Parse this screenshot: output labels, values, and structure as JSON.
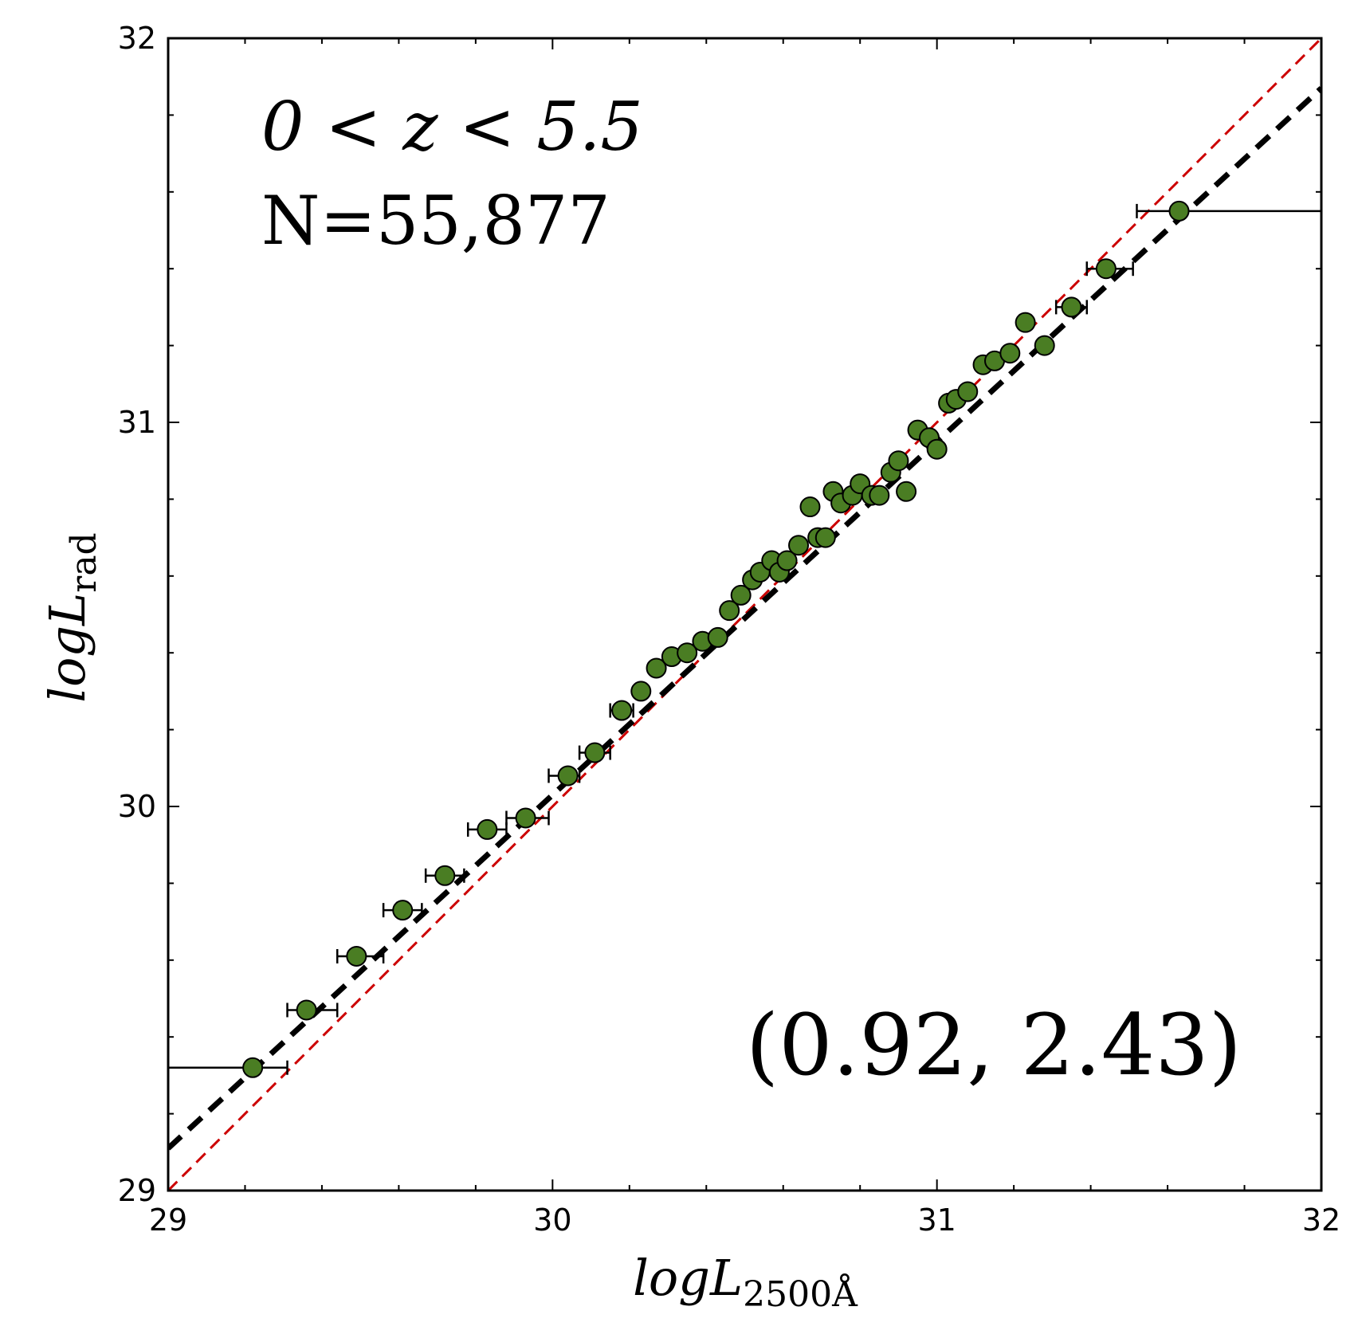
{
  "chart_data": {
    "type": "scatter",
    "xlim": [
      29,
      32
    ],
    "ylim": [
      29,
      32
    ],
    "x_ticks": [
      "29",
      "30",
      "31",
      "32"
    ],
    "y_ticks": [
      "29",
      "30",
      "31",
      "32"
    ],
    "xlabel": {
      "main": "logL",
      "sub": "2500Å"
    },
    "ylabel": {
      "main": "logL",
      "sub": "rad"
    },
    "annotations": {
      "redshift_range": "0 < z < 5.5",
      "count": "N=55,877",
      "fit_params": "(0.92, 2.43)"
    },
    "grid": false,
    "colors": {
      "points": "#4a7d23",
      "fit_line": "#000000",
      "reference_line": "#cc0000"
    },
    "fit_line": {
      "style": "black thick dashed",
      "slope": 0.92,
      "intercept": 2.43
    },
    "reference_line": {
      "style": "red thin dashed",
      "slope": 1.0,
      "intercept": 0
    },
    "points": [
      {
        "x": 29.22,
        "y": 29.32,
        "xerr": [
          29.0,
          29.31
        ]
      },
      {
        "x": 29.36,
        "y": 29.47,
        "xerr": [
          29.31,
          29.44
        ]
      },
      {
        "x": 29.49,
        "y": 29.61,
        "xerr": [
          29.44,
          29.56
        ]
      },
      {
        "x": 29.61,
        "y": 29.73,
        "xerr": [
          29.56,
          29.66
        ]
      },
      {
        "x": 29.72,
        "y": 29.82,
        "xerr": [
          29.67,
          29.77
        ]
      },
      {
        "x": 29.83,
        "y": 29.94,
        "xerr": [
          29.78,
          29.88
        ]
      },
      {
        "x": 29.93,
        "y": 29.97,
        "xerr": [
          29.88,
          29.99
        ]
      },
      {
        "x": 30.04,
        "y": 30.08,
        "xerr": [
          29.99,
          30.07
        ]
      },
      {
        "x": 30.11,
        "y": 30.14,
        "xerr": [
          30.07,
          30.15
        ]
      },
      {
        "x": 30.18,
        "y": 30.25,
        "xerr": [
          30.15,
          30.21
        ]
      },
      {
        "x": 30.23,
        "y": 30.3
      },
      {
        "x": 30.27,
        "y": 30.36
      },
      {
        "x": 30.31,
        "y": 30.39
      },
      {
        "x": 30.35,
        "y": 30.4
      },
      {
        "x": 30.39,
        "y": 30.43
      },
      {
        "x": 30.43,
        "y": 30.44
      },
      {
        "x": 30.46,
        "y": 30.51
      },
      {
        "x": 30.49,
        "y": 30.55
      },
      {
        "x": 30.52,
        "y": 30.59
      },
      {
        "x": 30.54,
        "y": 30.61
      },
      {
        "x": 30.57,
        "y": 30.64
      },
      {
        "x": 30.59,
        "y": 30.61
      },
      {
        "x": 30.61,
        "y": 30.64
      },
      {
        "x": 30.64,
        "y": 30.68
      },
      {
        "x": 30.67,
        "y": 30.78
      },
      {
        "x": 30.69,
        "y": 30.7
      },
      {
        "x": 30.71,
        "y": 30.7
      },
      {
        "x": 30.73,
        "y": 30.82
      },
      {
        "x": 30.75,
        "y": 30.79
      },
      {
        "x": 30.78,
        "y": 30.81
      },
      {
        "x": 30.8,
        "y": 30.84
      },
      {
        "x": 30.83,
        "y": 30.81
      },
      {
        "x": 30.85,
        "y": 30.81
      },
      {
        "x": 30.88,
        "y": 30.87
      },
      {
        "x": 30.9,
        "y": 30.9
      },
      {
        "x": 30.92,
        "y": 30.82
      },
      {
        "x": 30.95,
        "y": 30.98
      },
      {
        "x": 30.98,
        "y": 30.96
      },
      {
        "x": 31.0,
        "y": 30.93
      },
      {
        "x": 31.03,
        "y": 31.05
      },
      {
        "x": 31.05,
        "y": 31.06
      },
      {
        "x": 31.08,
        "y": 31.08
      },
      {
        "x": 31.12,
        "y": 31.15
      },
      {
        "x": 31.15,
        "y": 31.16
      },
      {
        "x": 31.19,
        "y": 31.18
      },
      {
        "x": 31.23,
        "y": 31.26
      },
      {
        "x": 31.28,
        "y": 31.2
      },
      {
        "x": 31.35,
        "y": 31.3,
        "xerr": [
          31.31,
          31.39
        ]
      },
      {
        "x": 31.44,
        "y": 31.4,
        "xerr": [
          31.39,
          31.51
        ]
      },
      {
        "x": 31.63,
        "y": 31.55,
        "xerr": [
          31.52,
          32.0
        ]
      }
    ]
  }
}
